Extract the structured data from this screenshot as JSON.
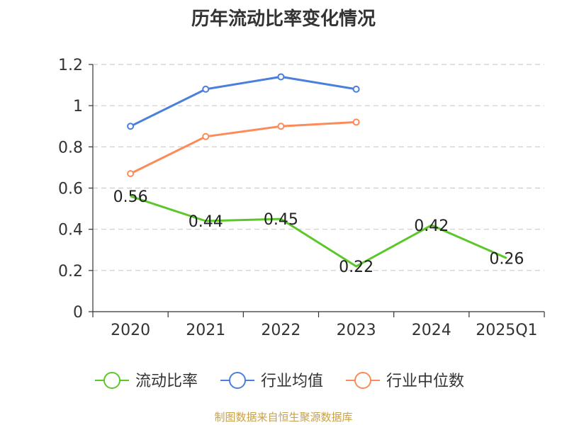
{
  "chart_data": {
    "type": "line",
    "title": "历年流动比率变化情况",
    "categories": [
      "2020",
      "2021",
      "2022",
      "2023",
      "2024",
      "2025Q1"
    ],
    "ylim": [
      0,
      1.2
    ],
    "yticks": [
      "0",
      "0.2",
      "0.4",
      "0.6",
      "0.8",
      "1",
      "1.2"
    ],
    "grid": true,
    "legend_position": "bottom",
    "series": [
      {
        "name": "流动比率",
        "color": "#5cc72a",
        "values": [
          0.56,
          0.44,
          0.45,
          0.22,
          0.42,
          0.26
        ],
        "labels": [
          "0.56",
          "0.44",
          "0.45",
          "0.22",
          "0.42",
          "0.26"
        ],
        "markers": false
      },
      {
        "name": "行业均值",
        "color": "#4a7fdb",
        "values": [
          0.9,
          1.08,
          1.14,
          1.08,
          null,
          null
        ],
        "markers": true
      },
      {
        "name": "行业中位数",
        "color": "#fb8c5a",
        "values": [
          0.67,
          0.85,
          0.9,
          0.92,
          null,
          null
        ],
        "markers": true
      }
    ]
  },
  "source_note": "制图数据来自恒生聚源数据库"
}
